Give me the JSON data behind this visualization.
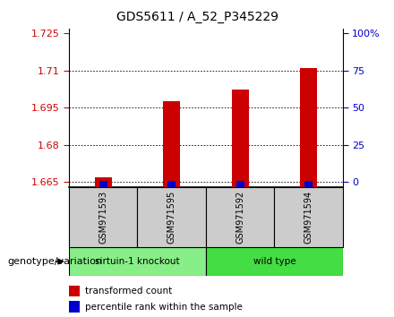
{
  "title": "GDS5611 / A_52_P345229",
  "samples": [
    "GSM971593",
    "GSM971595",
    "GSM971592",
    "GSM971594"
  ],
  "red_values": [
    1.6668,
    1.6975,
    1.7025,
    1.711
  ],
  "blue_values": [
    1.6653,
    1.6653,
    1.6653,
    1.6653
  ],
  "ylim_left": [
    1.663,
    1.727
  ],
  "yticks_left": [
    1.665,
    1.68,
    1.695,
    1.71,
    1.725
  ],
  "ytick_labels_left": [
    "1.665",
    "1.68",
    "1.695",
    "1.71",
    "1.725"
  ],
  "yticks_right": [
    0,
    25,
    50,
    75,
    100
  ],
  "ytick_labels_right": [
    "0",
    "25",
    "50",
    "75",
    "100%"
  ],
  "groups": [
    {
      "label": "sirtuin-1 knockout",
      "color": "#88ee88",
      "span": [
        0,
        1
      ]
    },
    {
      "label": "wild type",
      "color": "#44dd44",
      "span": [
        2,
        3
      ]
    }
  ],
  "red_bar_width": 0.25,
  "blue_bar_width": 0.12,
  "red_color": "#cc0000",
  "blue_color": "#0000cc",
  "bg_color": "#ffffff",
  "grid_color": "#000000",
  "sample_bg_color": "#cccccc",
  "legend_red_label": "transformed count",
  "legend_blue_label": "percentile rank within the sample",
  "xlabel_label": "genotype/variation",
  "left_yaxis_color": "#cc0000",
  "right_yaxis_color": "#0000cc"
}
